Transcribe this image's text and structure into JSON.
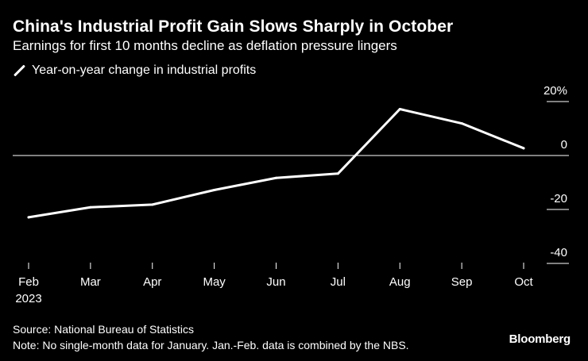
{
  "header": {
    "title": "China's Industrial Profit Gain Slows Sharply in October",
    "subtitle": "Earnings for first 10 months decline as deflation pressure lingers"
  },
  "chart_data": {
    "type": "line",
    "title": "China's Industrial Profit Gain Slows Sharply in October",
    "subtitle": "Earnings for first 10 months decline as deflation pressure lingers",
    "categories": [
      "Feb",
      "Mar",
      "Apr",
      "May",
      "Jun",
      "Jul",
      "Aug",
      "Sep",
      "Oct"
    ],
    "year_label": "2023",
    "series": [
      {
        "name": "Year-on-year change in industrial profits",
        "values": [
          -22.9,
          -19.2,
          -18.2,
          -12.8,
          -8.3,
          -6.7,
          17.2,
          11.9,
          2.7
        ]
      }
    ],
    "y_ticks": [
      {
        "value": 20,
        "label": "20%"
      },
      {
        "value": 0,
        "label": "0"
      },
      {
        "value": -20,
        "label": "-20"
      },
      {
        "value": -40,
        "label": "-40"
      }
    ],
    "ylim": [
      -40,
      20
    ],
    "xlabel": "",
    "ylabel": "",
    "legend_position": "top-left",
    "colors": {
      "background": "#000000",
      "line": "#ffffff",
      "text": "#ffffff",
      "zero_line": "#ffffff"
    }
  },
  "footer": {
    "source": "Source: National Bureau of Statistics",
    "note": "Note: No single-month data for January. Jan.-Feb. data is combined by the NBS.",
    "brand": "Bloomberg"
  }
}
